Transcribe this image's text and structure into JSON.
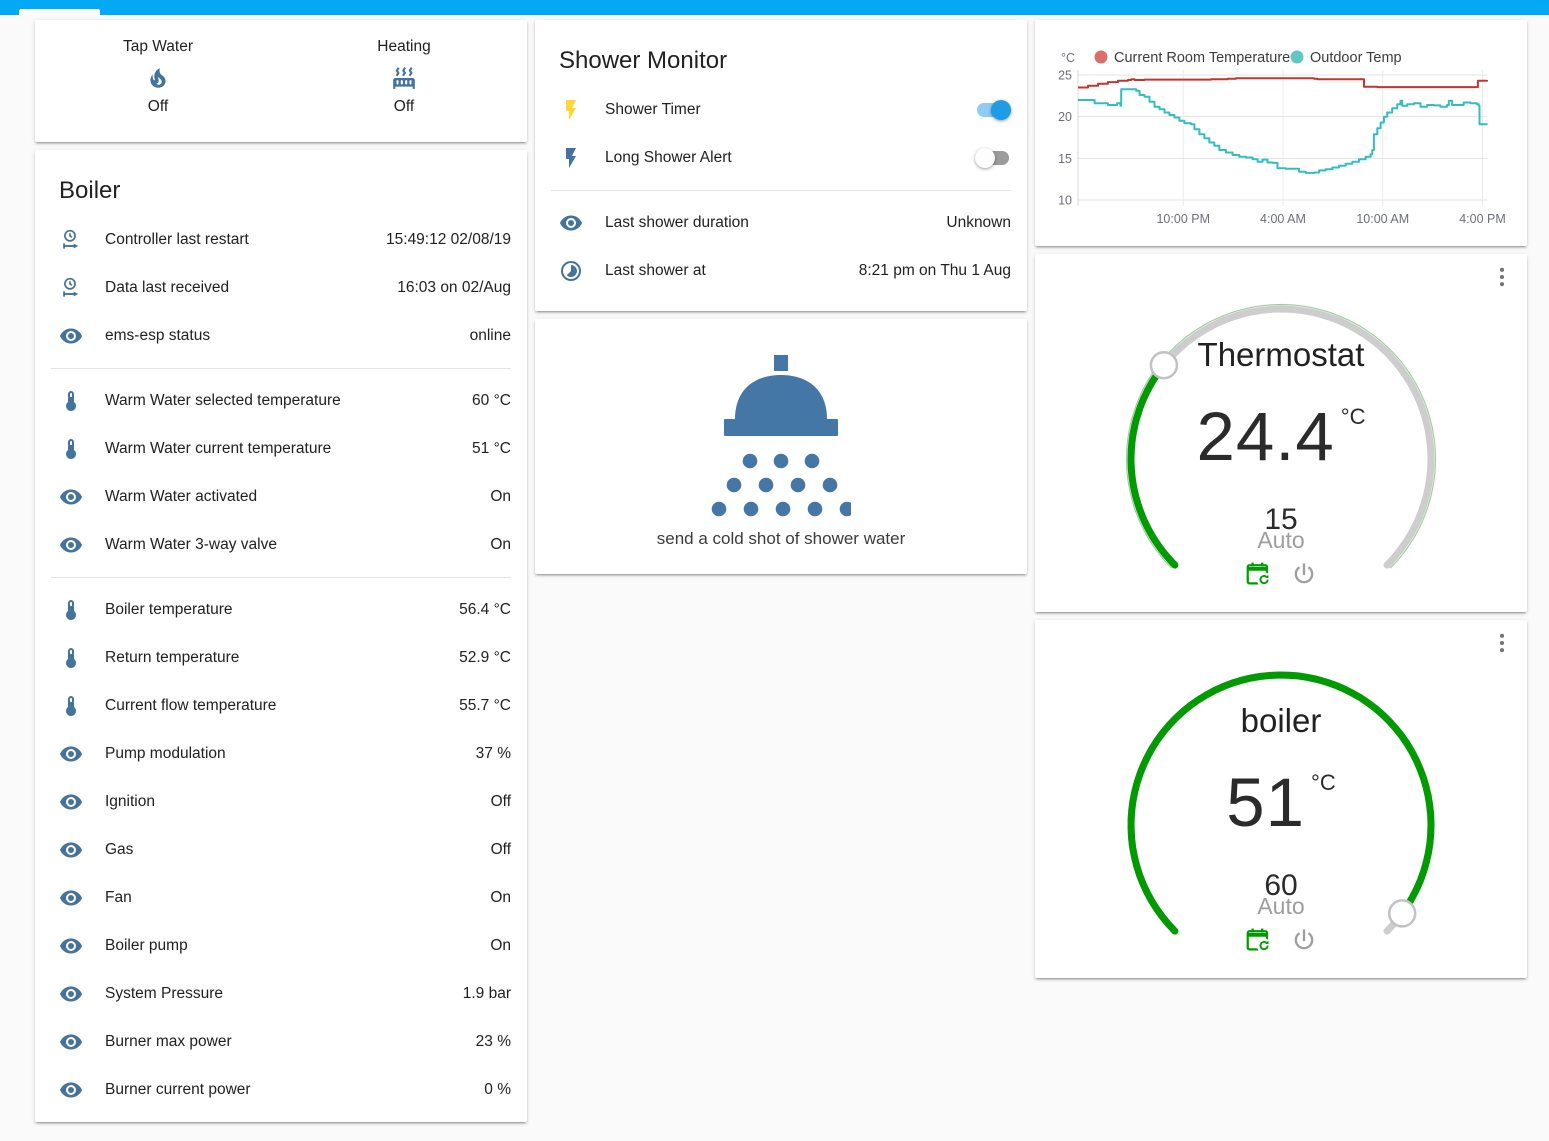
{
  "theme": {
    "header": "#03a9f4",
    "icon": "#44739e",
    "accent_green": "#019a01",
    "page_bg": "#fafafa"
  },
  "glance_card": {
    "items": [
      {
        "label": "Tap Water",
        "icon": "fire-icon",
        "state": "Off"
      },
      {
        "label": "Heating",
        "icon": "radiator-icon",
        "state": "Off"
      }
    ]
  },
  "boiler_card": {
    "title": "Boiler",
    "sections": [
      {
        "rows": [
          {
            "type": "sensor",
            "icon": "clock-start-icon",
            "label": "Controller last restart",
            "value": "15:49:12 02/08/19"
          },
          {
            "type": "sensor",
            "icon": "clock-start-icon",
            "label": "Data last received",
            "value": "16:03 on 02/Aug"
          },
          {
            "type": "sensor",
            "icon": "eye-icon",
            "label": "ems-esp status",
            "value": "online"
          }
        ]
      },
      {
        "rows": [
          {
            "type": "sensor",
            "icon": "thermometer-icon",
            "label": "Warm Water selected temperature",
            "value": "60 °C"
          },
          {
            "type": "sensor",
            "icon": "thermometer-icon",
            "label": "Warm Water current temperature",
            "value": "51 °C"
          },
          {
            "type": "sensor",
            "icon": "eye-icon",
            "label": "Warm Water activated",
            "value": "On"
          },
          {
            "type": "sensor",
            "icon": "eye-icon",
            "label": "Warm Water 3-way valve",
            "value": "On"
          }
        ]
      },
      {
        "rows": [
          {
            "type": "sensor",
            "icon": "thermometer-icon",
            "label": "Boiler temperature",
            "value": "56.4 °C"
          },
          {
            "type": "sensor",
            "icon": "thermometer-icon",
            "label": "Return temperature",
            "value": "52.9 °C"
          },
          {
            "type": "sensor",
            "icon": "thermometer-icon",
            "label": "Current flow temperature",
            "value": "55.7 °C"
          },
          {
            "type": "sensor",
            "icon": "eye-icon",
            "label": "Pump modulation",
            "value": "37 %"
          },
          {
            "type": "sensor",
            "icon": "eye-icon",
            "label": "Ignition",
            "value": "Off"
          },
          {
            "type": "sensor",
            "icon": "eye-icon",
            "label": "Gas",
            "value": "Off"
          },
          {
            "type": "sensor",
            "icon": "eye-icon",
            "label": "Fan",
            "value": "On"
          },
          {
            "type": "sensor",
            "icon": "eye-icon",
            "label": "Boiler pump",
            "value": "On"
          },
          {
            "type": "sensor",
            "icon": "eye-icon",
            "label": "System Pressure",
            "value": "1.9 bar"
          },
          {
            "type": "sensor",
            "icon": "eye-icon",
            "label": "Burner max power",
            "value": "23 %"
          },
          {
            "type": "sensor",
            "icon": "eye-icon",
            "label": "Burner current power",
            "value": "0 %"
          }
        ]
      }
    ]
  },
  "shower_monitor": {
    "title": "Shower Monitor",
    "sections": [
      {
        "rows": [
          {
            "type": "toggle",
            "icon": "flash-icon",
            "icon_color": "#fdd835",
            "label": "Shower Timer",
            "state": "on"
          },
          {
            "type": "toggle",
            "icon": "flash-icon",
            "icon_color": "#44739e",
            "label": "Long Shower Alert",
            "state": "off"
          }
        ]
      },
      {
        "rows": [
          {
            "type": "sensor",
            "icon": "eye-icon",
            "label": "Last shower duration",
            "value": "Unknown"
          },
          {
            "type": "sensor",
            "icon": "timelapse-icon",
            "label": "Last shower at",
            "value": "8:21 pm on Thu 1 Aug"
          }
        ]
      }
    ]
  },
  "shower_button": {
    "label": "send a cold shot of shower water"
  },
  "chart_data": {
    "type": "line",
    "unit": "°C",
    "y_ticks": [
      25,
      20,
      15,
      10
    ],
    "y_range": [
      10,
      25
    ],
    "x_range_hours": [
      0,
      24.6
    ],
    "x_ticks": [
      {
        "hour": 6.33,
        "label": "10:00 PM"
      },
      {
        "hour": 12.33,
        "label": "4:00 AM"
      },
      {
        "hour": 18.33,
        "label": "10:00 AM"
      },
      {
        "hour": 24.33,
        "label": "4:00 PM"
      }
    ],
    "legend_position": "top",
    "grid": true,
    "series": [
      {
        "name": "Current Room Temperature",
        "color": "#c23531",
        "legend_color": "#dd6e6e",
        "points": [
          [
            0,
            23.5
          ],
          [
            0.6,
            23.7
          ],
          [
            1.2,
            23.95
          ],
          [
            1.8,
            24.15
          ],
          [
            2.4,
            24.3
          ],
          [
            3,
            24.4
          ],
          [
            3.2,
            24.5
          ],
          [
            3.4,
            24.4
          ],
          [
            4,
            24.45
          ],
          [
            5,
            24.45
          ],
          [
            6,
            24.45
          ],
          [
            7,
            24.45
          ],
          [
            8,
            24.5
          ],
          [
            9,
            24.55
          ],
          [
            9.5,
            24.6
          ],
          [
            10.5,
            24.6
          ],
          [
            12,
            24.6
          ],
          [
            13.5,
            24.6
          ],
          [
            14.2,
            24.55
          ],
          [
            14.4,
            24.5
          ],
          [
            15.5,
            24.5
          ],
          [
            17,
            24.5
          ],
          [
            17.2,
            23.6
          ],
          [
            18,
            23.55
          ],
          [
            19,
            23.55
          ],
          [
            20,
            23.55
          ],
          [
            21,
            23.55
          ],
          [
            22,
            23.55
          ],
          [
            23,
            23.55
          ],
          [
            24,
            23.55
          ],
          [
            24.05,
            24.3
          ],
          [
            24.6,
            24.4
          ]
        ]
      },
      {
        "name": "Outdoor Temp",
        "color": "#35bdbd",
        "legend_color": "#61c7c3",
        "points": [
          [
            0,
            22
          ],
          [
            0.9,
            22
          ],
          [
            1,
            21.6
          ],
          [
            1.7,
            21.6
          ],
          [
            1.8,
            21.4
          ],
          [
            2.3,
            21.4
          ],
          [
            2.35,
            21.6
          ],
          [
            2.5,
            21.6
          ],
          [
            2.55,
            21.3
          ],
          [
            2.6,
            23.3
          ],
          [
            3.3,
            23.3
          ],
          [
            3.5,
            23.1
          ],
          [
            3.7,
            22.6
          ],
          [
            4,
            22.4
          ],
          [
            4.3,
            21.8
          ],
          [
            4.6,
            21.2
          ],
          [
            4.9,
            20.9
          ],
          [
            5.2,
            20.5
          ],
          [
            5.5,
            20.2
          ],
          [
            5.8,
            19.9
          ],
          [
            6.1,
            19.5
          ],
          [
            6.4,
            19.2
          ],
          [
            6.8,
            19.1
          ],
          [
            7,
            18.5
          ],
          [
            7.3,
            17.9
          ],
          [
            7.6,
            17.4
          ],
          [
            7.9,
            16.9
          ],
          [
            8.2,
            16.5
          ],
          [
            8.5,
            16
          ],
          [
            8.9,
            15.7
          ],
          [
            9.3,
            15.4
          ],
          [
            9.7,
            15.2
          ],
          [
            10.1,
            15.1
          ],
          [
            10.5,
            14.9
          ],
          [
            10.8,
            14.6
          ],
          [
            11.1,
            14.85
          ],
          [
            11.4,
            14.5
          ],
          [
            11.7,
            14.45
          ],
          [
            12,
            13.8
          ],
          [
            12.5,
            13.75
          ],
          [
            13.2,
            13.75
          ],
          [
            13.3,
            13.4
          ],
          [
            13.7,
            13.25
          ],
          [
            14.2,
            13.3
          ],
          [
            14.5,
            13.55
          ],
          [
            14.9,
            13.7
          ],
          [
            15.3,
            13.9
          ],
          [
            15.7,
            14.1
          ],
          [
            16.1,
            14.35
          ],
          [
            16.5,
            14.6
          ],
          [
            16.9,
            14.9
          ],
          [
            17.3,
            15.2
          ],
          [
            17.6,
            15.5
          ],
          [
            17.7,
            16
          ],
          [
            17.8,
            17.9
          ],
          [
            18,
            18.6
          ],
          [
            18.2,
            19.3
          ],
          [
            18.4,
            20
          ],
          [
            18.6,
            20.5
          ],
          [
            18.9,
            21
          ],
          [
            19.2,
            21.5
          ],
          [
            19.4,
            21.9
          ],
          [
            19.5,
            21.3
          ],
          [
            19.8,
            21.5
          ],
          [
            20.2,
            21.6
          ],
          [
            20.6,
            21.2
          ],
          [
            21,
            21.4
          ],
          [
            21.4,
            21.35
          ],
          [
            21.8,
            21.2
          ],
          [
            22.2,
            21.4
          ],
          [
            22.3,
            21.9
          ],
          [
            22.5,
            21.4
          ],
          [
            22.9,
            21.4
          ],
          [
            23.2,
            21.7
          ],
          [
            23.6,
            21.6
          ],
          [
            24,
            21.5
          ],
          [
            24.1,
            21.3
          ],
          [
            24.15,
            19.1
          ],
          [
            24.6,
            19.05
          ]
        ]
      }
    ]
  },
  "thermostat_card": {
    "title": "Thermostat",
    "current": "24.4",
    "unit": "°C",
    "target": "15",
    "mode": "Auto",
    "accent_color": "#019a01",
    "slider_position": 0.31
  },
  "boiler_dial_card": {
    "title": "boiler",
    "current": "51",
    "unit": "°C",
    "target": "60",
    "mode": "Auto",
    "accent_color": "#019a01",
    "slider_position": 0.967
  }
}
